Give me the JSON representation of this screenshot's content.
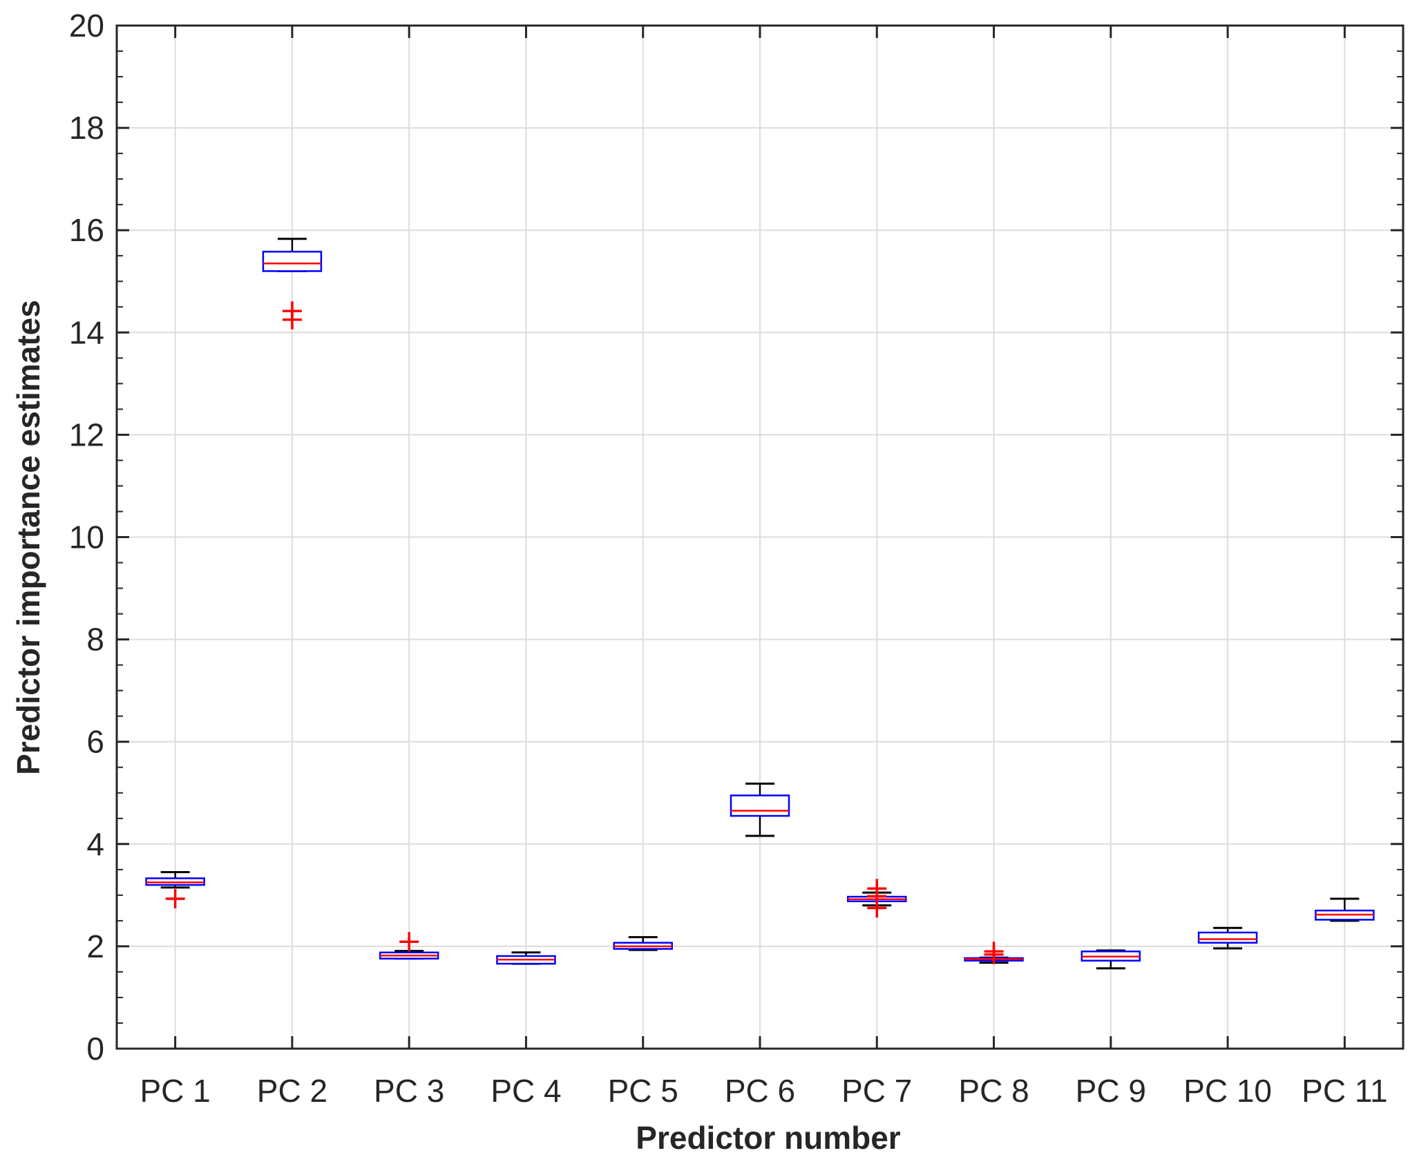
{
  "chart_data": {
    "type": "boxplot",
    "xlabel": "Predictor number",
    "ylabel": "Predictor importance estimates",
    "ylim": [
      0,
      20
    ],
    "yticks": [
      0,
      2,
      4,
      6,
      8,
      10,
      12,
      14,
      16,
      18,
      20
    ],
    "y_tick_labels": [
      "0",
      "2",
      "4",
      "6",
      "8",
      "10",
      "12",
      "14",
      "16",
      "18",
      "20"
    ],
    "grid": true,
    "categories": [
      "PC 1",
      "PC 2",
      "PC 3",
      "PC 4",
      "PC 5",
      "PC 6",
      "PC 7",
      "PC 8",
      "PC 9",
      "PC 10",
      "PC 11"
    ],
    "boxes": [
      {
        "whisker_low": 3.15,
        "q1": 3.2,
        "median": 3.25,
        "q3": 3.33,
        "whisker_high": 3.45,
        "outliers": [
          2.93
        ]
      },
      {
        "whisker_low": 15.2,
        "q1": 15.2,
        "median": 15.35,
        "q3": 15.58,
        "whisker_high": 15.83,
        "outliers": [
          14.42,
          14.25
        ]
      },
      {
        "whisker_low": 1.76,
        "q1": 1.76,
        "median": 1.82,
        "q3": 1.88,
        "whisker_high": 1.91,
        "outliers": [
          2.09
        ]
      },
      {
        "whisker_low": 1.66,
        "q1": 1.66,
        "median": 1.74,
        "q3": 1.81,
        "whisker_high": 1.88,
        "outliers": []
      },
      {
        "whisker_low": 1.93,
        "q1": 1.95,
        "median": 2.0,
        "q3": 2.07,
        "whisker_high": 2.18,
        "outliers": []
      },
      {
        "whisker_low": 4.16,
        "q1": 4.55,
        "median": 4.65,
        "q3": 4.95,
        "whisker_high": 5.18,
        "outliers": []
      },
      {
        "whisker_low": 2.8,
        "q1": 2.88,
        "median": 2.92,
        "q3": 2.97,
        "whisker_high": 3.05,
        "outliers": [
          3.13,
          2.98,
          2.75
        ]
      },
      {
        "whisker_low": 1.68,
        "q1": 1.72,
        "median": 1.75,
        "q3": 1.77,
        "whisker_high": 1.78,
        "outliers": [
          1.9,
          1.84
        ]
      },
      {
        "whisker_low": 1.57,
        "q1": 1.72,
        "median": 1.8,
        "q3": 1.9,
        "whisker_high": 1.92,
        "outliers": []
      },
      {
        "whisker_low": 1.96,
        "q1": 2.07,
        "median": 2.14,
        "q3": 2.27,
        "whisker_high": 2.36,
        "outliers": []
      },
      {
        "whisker_low": 2.5,
        "q1": 2.52,
        "median": 2.62,
        "q3": 2.7,
        "whisker_high": 2.93,
        "outliers": []
      }
    ],
    "colors": {
      "box": "#0000ff",
      "median": "#ff0000",
      "whisker": "#000000",
      "outlier": "#ff0000",
      "grid": "#dcdcdc",
      "axis": "#262626"
    }
  }
}
